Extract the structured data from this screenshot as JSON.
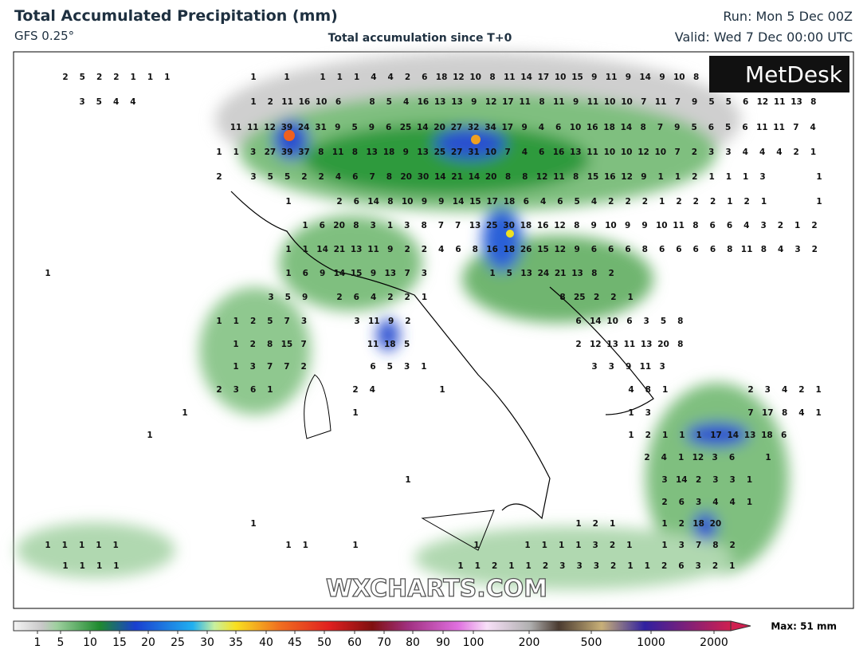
{
  "header": {
    "title": "Total Accumulated Precipitation (mm)",
    "model": "GFS 0.25°",
    "subtitle": "Total accumulation since T+0",
    "run": "Run: Mon 5 Dec 00Z",
    "valid": "Valid: Wed 7 Dec 00:00 UTC"
  },
  "logo": "MetDesk",
  "watermark": "WXCHARTS.COM",
  "map_labels": [
    [
      [
        2,
        5,
        2,
        2,
        1,
        1,
        1
      ],
      [
        1
      ],
      [
        1
      ],
      [
        1,
        1,
        1,
        4,
        4,
        2,
        6,
        18,
        12,
        10,
        8,
        11,
        14,
        17,
        10,
        15,
        9,
        11,
        9,
        14,
        9,
        10,
        8
      ]
    ],
    [
      [
        3,
        5,
        4,
        4
      ],
      [
        1,
        2,
        11,
        16,
        10,
        6
      ],
      [
        8,
        5,
        4,
        16,
        13,
        13,
        9,
        12,
        17,
        11,
        8,
        11,
        9,
        11,
        10,
        10,
        7,
        11,
        7,
        9,
        5,
        5,
        6,
        12,
        11,
        13,
        8
      ]
    ],
    [
      [
        11,
        11,
        12,
        39,
        24,
        31,
        9,
        5,
        9,
        6,
        25,
        14,
        20,
        27,
        32,
        34,
        17,
        9,
        4,
        6,
        10,
        16,
        18,
        14,
        8,
        7,
        9,
        5,
        6,
        5,
        6,
        11,
        11,
        7,
        4
      ]
    ],
    [
      [
        1,
        1,
        3,
        27,
        39,
        37,
        8,
        11,
        8,
        13,
        18,
        9,
        13,
        25,
        27,
        31,
        10,
        7,
        4,
        6,
        16,
        13,
        11,
        10,
        10,
        12,
        10,
        7,
        2,
        3,
        3,
        4,
        4,
        4,
        2,
        1
      ]
    ],
    [
      [
        2
      ],
      [
        3,
        5,
        5,
        2,
        2,
        4,
        6,
        7,
        8,
        20,
        30,
        14,
        21,
        14,
        20,
        8,
        8,
        12,
        11,
        8,
        15,
        16,
        12,
        9,
        1,
        1,
        2,
        1,
        1,
        1,
        3
      ],
      [
        1
      ]
    ],
    [
      [
        1
      ],
      [
        2,
        6,
        14,
        8,
        10,
        9,
        9,
        14,
        15,
        17,
        18,
        6,
        4,
        6,
        5,
        4,
        2,
        2,
        2,
        1,
        2,
        2,
        2,
        1,
        2,
        1
      ],
      [
        1
      ]
    ],
    [
      [
        1,
        6,
        20,
        8,
        3,
        1,
        3,
        8,
        7,
        7,
        13,
        25,
        30,
        18,
        16,
        12,
        8,
        9,
        10,
        9,
        9,
        10,
        11,
        8,
        6,
        6,
        4,
        3,
        2,
        1,
        2
      ]
    ],
    [
      [
        1,
        1,
        14,
        21,
        13,
        11,
        9,
        2,
        2,
        4,
        6,
        8,
        16,
        18,
        26,
        15,
        12,
        9,
        6,
        6,
        6,
        8,
        6,
        6,
        6,
        6,
        8,
        11,
        8,
        4,
        3,
        2
      ]
    ],
    [
      [
        1
      ],
      [
        1,
        6,
        9,
        14,
        15,
        9,
        13,
        7,
        3
      ],
      [
        1,
        5,
        13,
        24,
        21,
        13,
        8,
        2
      ]
    ],
    [
      [
        3,
        5,
        9
      ],
      [
        2,
        6,
        4,
        2,
        2,
        1
      ],
      [
        8,
        25,
        2,
        2,
        1
      ]
    ],
    [
      [
        1,
        1,
        2,
        5,
        7,
        3
      ],
      [
        3,
        11,
        9,
        2
      ],
      [
        6,
        14,
        10,
        6,
        3,
        5,
        8
      ]
    ],
    [
      [
        1,
        2,
        8,
        15,
        7
      ],
      [
        11,
        18,
        5
      ],
      [
        2,
        12,
        13,
        11,
        13,
        20,
        8
      ]
    ],
    [
      [
        1,
        3,
        7,
        7,
        2
      ],
      [
        6,
        5,
        3,
        1
      ],
      [
        3,
        3,
        9,
        11,
        3
      ]
    ],
    [
      [
        2,
        3,
        6,
        1
      ],
      [
        2,
        4
      ],
      [
        1
      ],
      [
        4,
        8,
        1
      ],
      [
        2,
        3,
        4,
        2,
        1
      ]
    ],
    [
      [
        1
      ],
      [
        1
      ],
      [
        1,
        3
      ],
      [
        7,
        17,
        8,
        4,
        1
      ]
    ],
    [
      [
        1
      ],
      [
        1,
        2,
        1,
        1,
        1,
        17,
        14,
        13,
        18,
        6
      ]
    ],
    [
      [
        2,
        4,
        1,
        12,
        3,
        6
      ],
      [
        1
      ]
    ],
    [
      [
        1
      ],
      [
        3,
        14,
        2,
        3,
        3,
        1
      ]
    ],
    [
      [
        2,
        6,
        3,
        4,
        4,
        1
      ]
    ],
    [
      [
        1
      ],
      [
        1,
        2,
        1
      ],
      [
        1,
        2,
        18,
        20
      ]
    ],
    [
      [
        1,
        1,
        1,
        1,
        1
      ],
      [
        1,
        1
      ],
      [
        1
      ],
      [
        1
      ],
      [
        1,
        1,
        1,
        1,
        3,
        2,
        1
      ],
      [
        1,
        3,
        7,
        8,
        2
      ]
    ],
    [
      [
        1,
        1,
        1,
        1
      ],
      [
        1,
        1,
        2,
        1,
        1,
        2,
        3,
        3,
        3,
        2,
        1,
        1,
        2,
        6,
        3,
        2,
        1
      ]
    ]
  ],
  "colorbar": {
    "ticks": [
      1,
      5,
      10,
      15,
      20,
      25,
      30,
      35,
      40,
      45,
      50,
      60,
      70,
      80,
      90,
      100,
      200,
      500,
      1000,
      2000
    ],
    "max_label": "Max: 51 mm"
  }
}
